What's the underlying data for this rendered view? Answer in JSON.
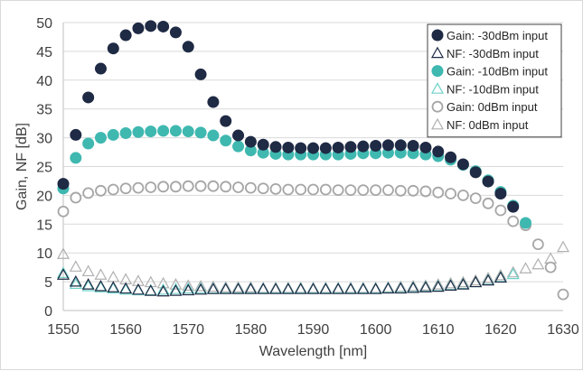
{
  "chart_data": {
    "type": "scatter",
    "xlabel": "Wavelength [nm]",
    "ylabel": "Gain, NF [dB]",
    "xlim": [
      1550,
      1630
    ],
    "ylim": [
      0,
      50
    ],
    "xticks": [
      1550,
      1560,
      1570,
      1580,
      1590,
      1600,
      1610,
      1620,
      1630
    ],
    "yticks": [
      0,
      5,
      10,
      15,
      20,
      25,
      30,
      35,
      40,
      45,
      50
    ],
    "grid": "horizontal",
    "legend": "top-right",
    "x": [
      1550,
      1552,
      1554,
      1556,
      1558,
      1560,
      1562,
      1564,
      1566,
      1568,
      1570,
      1572,
      1574,
      1576,
      1578,
      1580,
      1582,
      1584,
      1586,
      1588,
      1590,
      1592,
      1594,
      1596,
      1598,
      1600,
      1602,
      1604,
      1606,
      1608,
      1610,
      1612,
      1614,
      1616,
      1618,
      1620,
      1622,
      1624,
      1626,
      1628,
      1630
    ],
    "series": [
      {
        "name": "Gain: -30dBm input",
        "marker": "filled-circle",
        "color": "#1f2a44",
        "values": [
          22.0,
          30.5,
          37.0,
          42.0,
          45.5,
          47.8,
          49.0,
          49.4,
          49.3,
          48.3,
          45.8,
          41.0,
          36.2,
          32.9,
          30.4,
          29.3,
          28.8,
          28.4,
          28.3,
          28.2,
          28.2,
          28.2,
          28.3,
          28.4,
          28.5,
          28.6,
          28.7,
          28.7,
          28.6,
          28.3,
          27.6,
          26.6,
          25.4,
          24.0,
          22.4,
          20.3,
          18.0,
          null,
          null,
          null,
          null
        ]
      },
      {
        "name": "NF: -30dBm input",
        "marker": "open-triangle",
        "color": "#1f2a44",
        "values": [
          6.2,
          5.0,
          4.5,
          4.2,
          4.0,
          3.8,
          3.6,
          3.4,
          3.3,
          3.4,
          3.5,
          3.6,
          3.7,
          3.7,
          3.7,
          3.7,
          3.7,
          3.7,
          3.7,
          3.7,
          3.7,
          3.7,
          3.7,
          3.7,
          3.7,
          3.7,
          3.8,
          3.8,
          3.9,
          4.0,
          4.1,
          4.3,
          4.5,
          4.9,
          5.2,
          5.7,
          null,
          null,
          null,
          null,
          null
        ]
      },
      {
        "name": "Gain: -10dBm input",
        "marker": "filled-circle",
        "color": "#3fb8b0",
        "values": [
          21.2,
          26.5,
          29.0,
          30.0,
          30.5,
          30.8,
          31.0,
          31.1,
          31.2,
          31.2,
          31.1,
          30.9,
          30.4,
          29.5,
          28.5,
          27.8,
          27.4,
          27.2,
          27.1,
          27.1,
          27.1,
          27.1,
          27.1,
          27.2,
          27.3,
          27.3,
          27.4,
          27.4,
          27.3,
          27.1,
          26.8,
          26.2,
          25.3,
          24.2,
          22.6,
          20.6,
          18.2,
          15.2,
          null,
          null,
          null
        ]
      },
      {
        "name": "NF: -10dBm input",
        "marker": "open-triangle",
        "color": "#6fd1c9",
        "values": [
          6.5,
          4.6,
          4.2,
          4.0,
          3.8,
          3.6,
          3.5,
          3.5,
          3.6,
          3.7,
          3.8,
          3.8,
          3.8,
          3.8,
          3.8,
          3.8,
          3.8,
          3.8,
          3.8,
          3.8,
          3.8,
          3.8,
          3.8,
          3.8,
          3.8,
          3.8,
          3.9,
          3.9,
          4.0,
          4.1,
          4.2,
          4.4,
          4.6,
          4.9,
          5.3,
          5.8,
          6.3,
          null,
          null,
          null,
          null
        ]
      },
      {
        "name": "Gain: 0dBm input",
        "marker": "open-circle",
        "color": "#a6a6a6",
        "values": [
          17.2,
          19.6,
          20.4,
          20.8,
          21.0,
          21.2,
          21.3,
          21.4,
          21.5,
          21.5,
          21.6,
          21.6,
          21.6,
          21.5,
          21.4,
          21.3,
          21.2,
          21.1,
          21.0,
          21.0,
          21.0,
          21.0,
          20.9,
          20.9,
          20.9,
          20.9,
          20.9,
          20.8,
          20.8,
          20.7,
          20.5,
          20.3,
          20.0,
          19.5,
          18.6,
          17.4,
          15.5,
          14.8,
          11.5,
          7.5,
          2.8
        ]
      },
      {
        "name": "NF: 0dBm input",
        "marker": "open-triangle",
        "color": "#b0b0b0",
        "values": [
          9.8,
          7.6,
          6.8,
          6.2,
          5.8,
          5.4,
          5.1,
          4.9,
          4.7,
          4.5,
          4.3,
          4.2,
          4.1,
          4.0,
          4.0,
          4.0,
          3.9,
          3.9,
          3.9,
          3.9,
          3.9,
          3.9,
          3.9,
          3.9,
          3.9,
          3.9,
          4.0,
          4.1,
          4.2,
          4.3,
          4.5,
          4.7,
          4.9,
          5.2,
          5.6,
          6.1,
          6.6,
          7.3,
          8.0,
          9.0,
          11.0
        ]
      }
    ]
  }
}
